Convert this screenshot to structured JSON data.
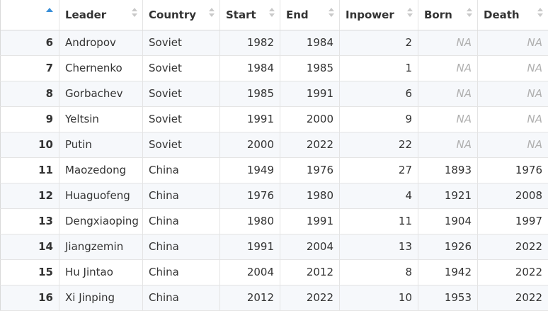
{
  "table": {
    "headers": [
      "",
      "Leader",
      "Country",
      "Start",
      "End",
      "Inpower",
      "Born",
      "Death"
    ],
    "accent_color": "#3a8fd8",
    "na_color": "#b0b0b0",
    "rows": [
      {
        "idx": "6",
        "leader": "Andropov",
        "country": "Soviet",
        "start": "1982",
        "end": "1984",
        "inpower": "2",
        "born": "NA",
        "death": "NA"
      },
      {
        "idx": "7",
        "leader": "Chernenko",
        "country": "Soviet",
        "start": "1984",
        "end": "1985",
        "inpower": "1",
        "born": "NA",
        "death": "NA"
      },
      {
        "idx": "8",
        "leader": "Gorbachev",
        "country": "Soviet",
        "start": "1985",
        "end": "1991",
        "inpower": "6",
        "born": "NA",
        "death": "NA"
      },
      {
        "idx": "9",
        "leader": "Yeltsin",
        "country": "Soviet",
        "start": "1991",
        "end": "2000",
        "inpower": "9",
        "born": "NA",
        "death": "NA"
      },
      {
        "idx": "10",
        "leader": "Putin",
        "country": "Soviet",
        "start": "2000",
        "end": "2022",
        "inpower": "22",
        "born": "NA",
        "death": "NA"
      },
      {
        "idx": "11",
        "leader": "Maozedong",
        "country": "China",
        "start": "1949",
        "end": "1976",
        "inpower": "27",
        "born": "1893",
        "death": "1976"
      },
      {
        "idx": "12",
        "leader": "Huaguofeng",
        "country": "China",
        "start": "1976",
        "end": "1980",
        "inpower": "4",
        "born": "1921",
        "death": "2008"
      },
      {
        "idx": "13",
        "leader": "Dengxiaoping",
        "country": "China",
        "start": "1980",
        "end": "1991",
        "inpower": "11",
        "born": "1904",
        "death": "1997"
      },
      {
        "idx": "14",
        "leader": "Jiangzemin",
        "country": "China",
        "start": "1991",
        "end": "2004",
        "inpower": "13",
        "born": "1926",
        "death": "2022"
      },
      {
        "idx": "15",
        "leader": "Hu Jintao",
        "country": "China",
        "start": "2004",
        "end": "2012",
        "inpower": "8",
        "born": "1942",
        "death": "2022"
      },
      {
        "idx": "16",
        "leader": "Xi Jinping",
        "country": "China",
        "start": "2012",
        "end": "2022",
        "inpower": "10",
        "born": "1953",
        "death": "2022"
      }
    ]
  }
}
